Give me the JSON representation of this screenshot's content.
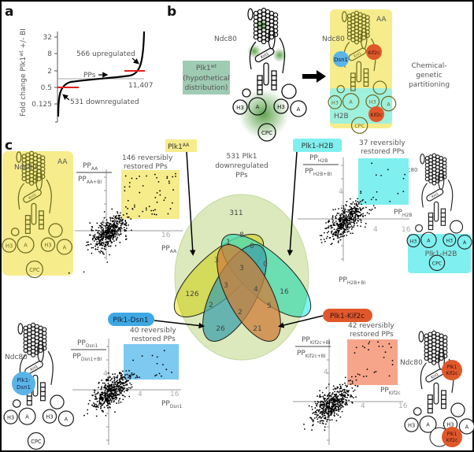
{
  "panels": {
    "a": "a",
    "b": "b",
    "c": "c"
  },
  "panel_a": {
    "y_label": "Fold change Plk1",
    "y_label_sup": "wt",
    "y_label_end": " +/- BI",
    "y_ticks": [
      "32",
      "8",
      "2",
      "0.5",
      "0.125"
    ],
    "upregulated": "566 upregulated",
    "pps": "PPs",
    "total": "11,407",
    "downregulated": "531 downregulated"
  },
  "panel_b": {
    "box_title": "Plk1",
    "box_sup": "wt",
    "box_line2": "(hypothetical",
    "box_line3": "distribution)",
    "ndc80": "Ndc80",
    "aa": "AA",
    "h2b": "H2B",
    "dsn1": "Dsn1",
    "kif2c": "Kif2c",
    "partition_1": "Chemical-",
    "partition_2": "genetic",
    "partition_3": "partitioning"
  },
  "kinetochore": {
    "ndc80": "Ndc80",
    "knl": "Knl1",
    "f": "F",
    "h3": "H3",
    "a": "A",
    "cpc": "CPC"
  },
  "tags": {
    "aa": "Plk1",
    "aa_sup": "AA",
    "h2b": "Plk1-H2B",
    "dsn1": "Plk1-Dsn1",
    "kif2c": "Plk1-Kif2c"
  },
  "venn": {
    "title_1": "531 Plk1",
    "title_2": "downregulated",
    "title_3": "PPs",
    "outside": "311",
    "regions": [
      "8",
      "1",
      "0",
      "3",
      "3",
      "0",
      "3",
      "4",
      "126",
      "16",
      "2",
      "5",
      "2",
      "26",
      "21"
    ]
  },
  "scatters": {
    "aa": {
      "restored_1": "146 reversibly",
      "restored_2": "restored PPs",
      "num": "PP",
      "num_sub": "AA",
      "den": "PP",
      "den_sub": "AA+BI",
      "x_label": "PP",
      "x_sub": "AA",
      "x_ticks": [
        "4",
        "16"
      ],
      "y_tick": "4",
      "box_label": "AA"
    },
    "h2b": {
      "restored_1": "37 reversibly",
      "restored_2": "restored PPs",
      "num": "PP",
      "num_sub": "H2B",
      "den": "PP",
      "den_sub": "H2B+BI",
      "x_label": "PP",
      "x_sub": "H2B",
      "x_ticks": [
        "4",
        "16"
      ],
      "y_tick": "4",
      "y_axis_label": "PP",
      "y_axis_sub": "H2B+BI",
      "box_label": "Plk1-H2B"
    },
    "dsn1": {
      "restored_1": "40 reversibly",
      "restored_2": "restored PPs",
      "num": "PP",
      "num_sub": "Dsn1",
      "den": "PP",
      "den_sub": "Dsn1+BI",
      "x_label": "PP",
      "x_sub": "Dsn1",
      "x_ticks": [
        "4",
        "16"
      ],
      "y_tick": "4",
      "circle_1": "Plk1-",
      "circle_2": "Dsn1"
    },
    "kif2c": {
      "restored_1": "42 reversibly",
      "restored_2": "restored PPs",
      "num": "PP",
      "num_sub": "Kif2c+BI",
      "den": "PP",
      "den_sub": "Kif2c+BI",
      "x_label": "PP",
      "x_sub": "Kif2c",
      "x_ticks": [
        "4",
        "16"
      ],
      "y_tick": "4",
      "circle_1": "Plk1",
      "circle_2": "Kif2c"
    }
  },
  "colors": {
    "aa": "#f6ec8c",
    "h2b": "#7ff0ef",
    "dsn1": "#5ab4e8",
    "kif2c": "#e0582a",
    "kif2c_box": "#f6a58a",
    "venn_bg": "#dbe9bd",
    "wt_box": "#9fcbb3",
    "red": "#e02020"
  }
}
